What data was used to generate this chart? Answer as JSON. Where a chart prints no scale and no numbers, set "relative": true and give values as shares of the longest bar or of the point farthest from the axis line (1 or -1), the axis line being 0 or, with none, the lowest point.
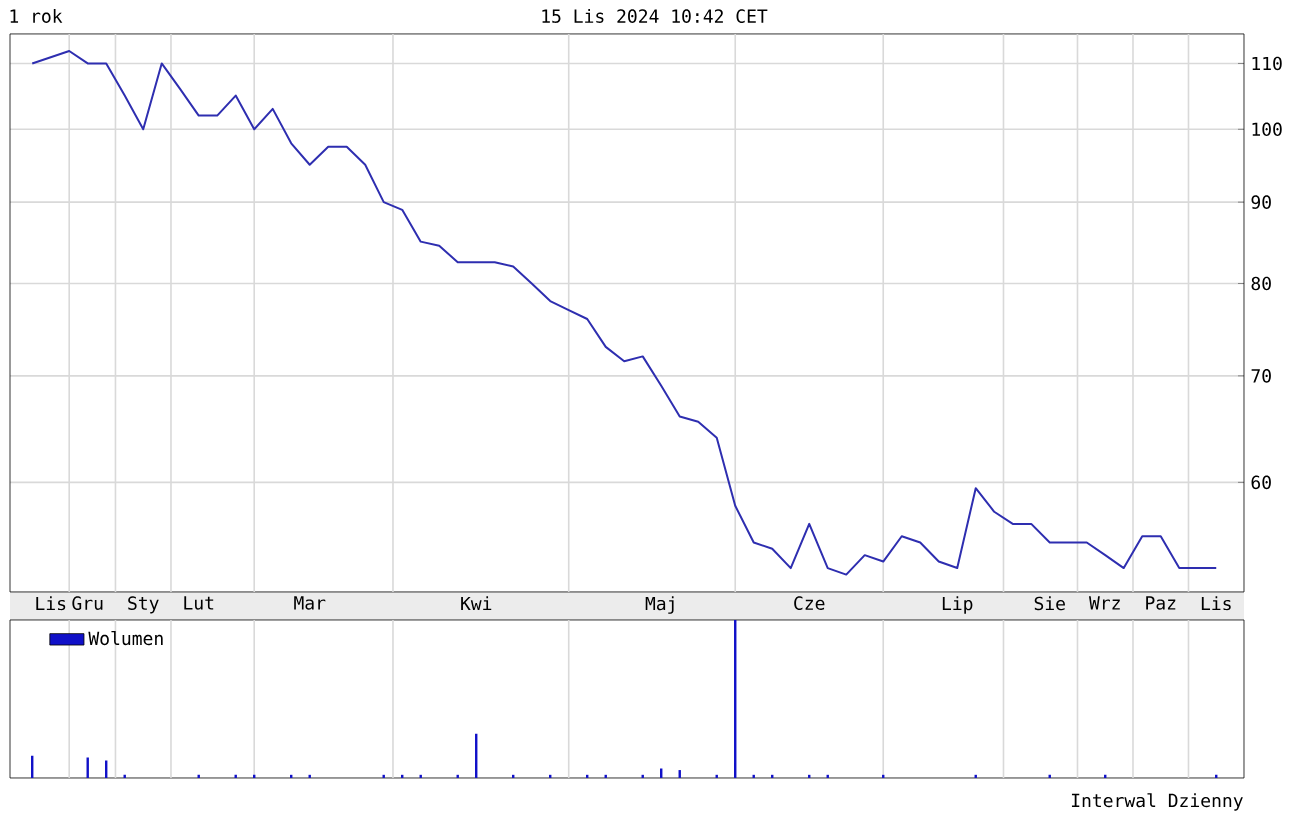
{
  "chart_data": [
    {
      "type": "line",
      "title": "1 rok",
      "subtitle": "15 Lis 2024 10:42 CET",
      "color": "#2e2eb0",
      "log": true,
      "grid": true,
      "categories": [
        null,
        "Lis",
        null,
        "Gru",
        null,
        null,
        "Sty",
        null,
        null,
        "Lut",
        null,
        null,
        null,
        null,
        null,
        "Mar",
        null,
        null,
        null,
        null,
        null,
        null,
        null,
        null,
        "Kwi",
        null,
        null,
        null,
        null,
        null,
        null,
        null,
        null,
        null,
        "Maj",
        null,
        null,
        null,
        null,
        null,
        null,
        null,
        "Cze",
        null,
        null,
        null,
        null,
        null,
        null,
        null,
        "Lip",
        null,
        null,
        null,
        null,
        "Sie",
        null,
        null,
        "Wrz",
        null,
        null,
        "Paz",
        null,
        null,
        "Lis"
      ],
      "values": [
        110,
        111,
        112,
        110,
        110,
        105,
        100,
        110,
        106,
        102,
        102,
        105,
        100,
        103,
        98,
        95,
        97.5,
        97.5,
        95,
        90,
        89,
        85,
        84.5,
        82.5,
        82.5,
        82.5,
        82,
        80,
        78,
        77,
        76,
        73,
        71.5,
        72,
        69,
        66,
        65.5,
        64,
        58,
        55,
        54.5,
        53,
        56.5,
        53,
        52.5,
        54,
        53.5,
        55.5,
        55,
        53.5,
        53,
        59.5,
        57.5,
        56.5,
        56.5,
        55,
        55,
        55,
        54,
        53,
        55.5,
        55.5,
        53,
        53,
        53
      ],
      "ylim": [
        51.2,
        114.8
      ],
      "yticks": [
        60,
        70,
        80,
        90,
        100,
        110
      ]
    },
    {
      "type": "bar",
      "relative": true,
      "grid": "x",
      "legend": "top left",
      "categories": [
        null,
        null,
        null,
        null,
        null,
        null,
        null,
        null,
        null,
        null,
        null,
        null,
        null,
        null,
        null,
        null,
        null,
        null,
        null,
        null,
        null,
        null,
        null,
        null,
        null,
        null,
        null,
        null,
        null,
        null,
        null,
        null,
        null,
        null,
        null,
        null,
        null,
        null,
        null,
        null,
        null,
        null,
        null,
        null,
        null,
        null,
        null,
        null,
        null,
        null,
        null,
        null,
        null,
        null,
        null,
        null,
        null,
        null,
        null,
        null,
        null,
        null,
        null,
        null,
        null
      ],
      "series": [
        {
          "name": "Wolumen",
          "color": "#1010c8",
          "values": [
            0.14,
            null,
            null,
            0.13,
            0.11,
            0.02,
            null,
            null,
            null,
            0.02,
            null,
            0.02,
            0.02,
            null,
            0.02,
            0.02,
            null,
            null,
            null,
            0.02,
            0.02,
            0.02,
            null,
            0.02,
            0.28,
            null,
            0.02,
            null,
            0.02,
            null,
            0.02,
            0.02,
            null,
            0.02,
            0.06,
            0.05,
            null,
            0.02,
            1,
            0.02,
            0.02,
            null,
            0.02,
            0.02,
            null,
            null,
            0.02,
            null,
            null,
            null,
            null,
            0.02,
            null,
            null,
            null,
            0.02,
            null,
            null,
            0.02,
            null,
            null,
            null,
            null,
            null,
            0.02
          ]
        }
      ],
      "annotations": [
        "Interwal Dzienny"
      ]
    }
  ]
}
